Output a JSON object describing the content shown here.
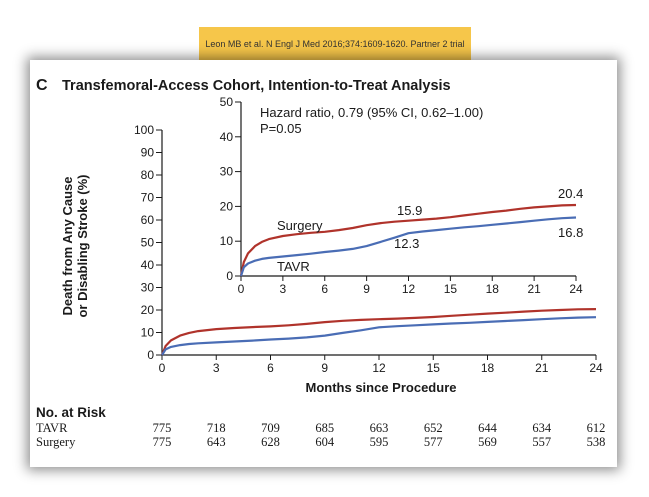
{
  "citation": {
    "text": "Leon MB et al. N Engl J Med 2016;374:1609-1620. Partner 2 trial",
    "background": "#f6c64a"
  },
  "panel": {
    "letter": "C",
    "title": "Transfemoral-Access Cohort, Intention-to-Treat Analysis"
  },
  "colors": {
    "surgery": "#b0332b",
    "tavr": "#4a6db5",
    "axis": "#1a1a1a"
  },
  "chart_data": [
    {
      "type": "line",
      "name": "main",
      "ylabel_lines": [
        "Death from Any Cause",
        "or Disabling Stroke (%)"
      ],
      "xlabel": "Months since Procedure",
      "xlim": [
        0,
        24
      ],
      "ylim": [
        0,
        100
      ],
      "xticks": [
        0,
        3,
        6,
        9,
        12,
        15,
        18,
        21,
        24
      ],
      "yticks": [
        0,
        10,
        20,
        30,
        40,
        50,
        60,
        70,
        80,
        90,
        100
      ],
      "grid": false,
      "series": [
        {
          "name": "Surgery",
          "color": "#b0332b",
          "x": [
            0,
            0.2,
            0.5,
            1,
            1.5,
            2,
            3,
            4,
            5,
            6,
            7,
            8,
            9,
            10,
            11,
            12,
            13,
            14,
            15,
            16,
            17,
            18,
            19,
            20,
            21,
            22,
            23,
            24
          ],
          "y": [
            0,
            4,
            6.5,
            8.6,
            9.8,
            10.6,
            11.5,
            12.0,
            12.4,
            12.7,
            13.2,
            13.8,
            14.6,
            15.2,
            15.6,
            15.9,
            16.2,
            16.5,
            16.9,
            17.4,
            17.9,
            18.4,
            18.8,
            19.3,
            19.7,
            20.0,
            20.3,
            20.4
          ]
        },
        {
          "name": "TAVR",
          "color": "#4a6db5",
          "x": [
            0,
            0.2,
            0.5,
            1,
            1.5,
            2,
            3,
            4,
            5,
            6,
            7,
            8,
            9,
            10,
            11,
            12,
            13,
            14,
            15,
            16,
            17,
            18,
            19,
            20,
            21,
            22,
            23,
            24
          ],
          "y": [
            0,
            2.5,
            3.6,
            4.4,
            4.9,
            5.2,
            5.6,
            6.0,
            6.4,
            6.9,
            7.3,
            7.8,
            8.6,
            9.8,
            11.0,
            12.3,
            12.8,
            13.2,
            13.6,
            14.0,
            14.3,
            14.7,
            15.1,
            15.5,
            15.9,
            16.3,
            16.6,
            16.8
          ]
        }
      ],
      "risk_table": {
        "title": "No. at Risk",
        "rows": [
          {
            "label": "TAVR",
            "values": [
              775,
              718,
              709,
              685,
              663,
              652,
              644,
              634,
              612
            ]
          },
          {
            "label": "Surgery",
            "values": [
              775,
              643,
              628,
              604,
              595,
              577,
              569,
              557,
              538
            ]
          }
        ]
      }
    },
    {
      "type": "line",
      "name": "inset",
      "xlim": [
        0,
        24
      ],
      "ylim": [
        0,
        50
      ],
      "xticks": [
        0,
        3,
        6,
        9,
        12,
        15,
        18,
        21,
        24
      ],
      "yticks": [
        0,
        10,
        20,
        30,
        40,
        50
      ],
      "grid": false,
      "annotations": {
        "hazard_ratio": "Hazard ratio, 0.79 (95% CI, 0.62–1.00)",
        "p_value": "P=0.05"
      },
      "labels": {
        "surgery": "Surgery",
        "tavr": "TAVR",
        "surgery_12": "15.9",
        "tavr_12": "12.3",
        "surgery_24": "20.4",
        "tavr_24": "16.8"
      }
    }
  ]
}
